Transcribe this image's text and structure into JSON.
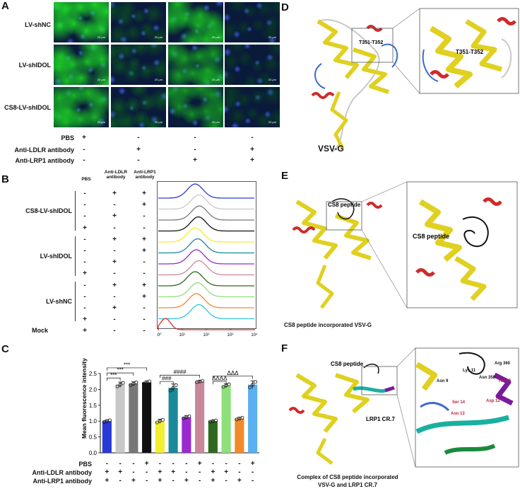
{
  "panels": {
    "A": "A",
    "B": "B",
    "C": "C",
    "D": "D",
    "E": "E",
    "F": "F"
  },
  "panelA": {
    "rows": [
      "LV-shNC",
      "LV-shIDOL",
      "CS8-LV-shIDOL"
    ],
    "treat_labels": [
      "PBS",
      "Anti-LDLR antibody",
      "Anti-LRP1 antibody"
    ],
    "treat_signs": [
      [
        "+",
        "-",
        "-",
        "-"
      ],
      [
        "-",
        "+",
        "-",
        "+"
      ],
      [
        "-",
        "-",
        "+",
        "+"
      ]
    ],
    "scale_text": "20 μm",
    "brightness": [
      [
        0.95,
        0.25,
        0.85,
        0.1
      ],
      [
        0.9,
        0.3,
        0.75,
        0.12
      ],
      [
        0.85,
        0.35,
        0.7,
        0.15
      ]
    ]
  },
  "panelB": {
    "col_headers": [
      "PBS",
      "Anti-LDLR antibody",
      "Anti-LRP1 antibody"
    ],
    "groups": [
      "CS8-LV-shIDOL",
      "LV-shIDOL",
      "LV-shNC",
      "Mock"
    ],
    "rows": [
      [
        "-",
        "+",
        "+"
      ],
      [
        "-",
        "-",
        "+"
      ],
      [
        "-",
        "+",
        "-"
      ],
      [
        "+",
        "-",
        "-"
      ],
      [
        "-",
        "+",
        "+"
      ],
      [
        "-",
        "-",
        "+"
      ],
      [
        "-",
        "+",
        "-"
      ],
      [
        "+",
        "-",
        "-"
      ],
      [
        "-",
        "+",
        "+"
      ],
      [
        "-",
        "-",
        "+"
      ],
      [
        "-",
        "+",
        "-"
      ],
      [
        "+",
        "-",
        "-"
      ],
      [
        "+",
        "-",
        "-"
      ]
    ],
    "hist_colors": [
      "#2a3ad6",
      "#c8c8c8",
      "#777777",
      "#111111",
      "#f2ee30",
      "#1a8a9a",
      "#9a2ad0",
      "#c7889a",
      "#2d6a1d",
      "#8ee07a",
      "#f08a2a",
      "#2ac8e0",
      "#e02a2a"
    ],
    "hist_peaks": [
      1.55,
      1.7,
      1.72,
      1.68,
      1.55,
      1.65,
      1.6,
      1.7,
      1.55,
      1.65,
      1.6,
      1.7,
      0.35
    ],
    "x_ticks": [
      "10⁰",
      "10¹",
      "10²",
      "10³",
      "10⁴"
    ]
  },
  "chart_data": {
    "type": "bar",
    "ylabel": "Mean fluorescence intensity",
    "ylim": [
      0.0,
      2.5
    ],
    "yticks": [
      "0.0",
      "0.5",
      "1.0",
      "1.5",
      "2.0",
      "2.5"
    ],
    "values": [
      1.0,
      2.15,
      2.18,
      2.22,
      1.0,
      2.05,
      1.12,
      2.25,
      1.0,
      2.12,
      1.08,
      2.15
    ],
    "errors": [
      0.04,
      0.08,
      0.06,
      0.05,
      0.06,
      0.12,
      0.05,
      0.03,
      0.03,
      0.06,
      0.04,
      0.12
    ],
    "colors": [
      "#2a3ad6",
      "#c8c8c8",
      "#777777",
      "#111111",
      "#f2ee30",
      "#1a8a9a",
      "#9a2ad0",
      "#c7889a",
      "#2d6a1d",
      "#8ee07a",
      "#f08a2a",
      "#5ab0f0"
    ],
    "row_labels": [
      "PBS",
      "Anti-LDLR antibody",
      "Anti-LRP1 antibody"
    ],
    "signs": [
      [
        "-",
        "-",
        "-",
        "+",
        "-",
        "-",
        "-",
        "+",
        "-",
        "-",
        "-",
        "+"
      ],
      [
        "+",
        "+",
        "-",
        "-",
        "+",
        "+",
        "-",
        "-",
        "+",
        "+",
        "-",
        "-"
      ],
      [
        "+",
        "-",
        "+",
        "-",
        "+",
        "-",
        "+",
        "-",
        "+",
        "-",
        "+",
        "-"
      ]
    ],
    "sig_labels": [
      "***",
      "***",
      "***",
      "###",
      "####",
      "ΔΔΔΔ",
      "ΔΔΔ"
    ]
  },
  "panelD": {
    "caption": "VSV-G",
    "site_label": "T351-T352",
    "zoom_label": "T351-T352"
  },
  "panelE": {
    "peptide_label": "CS8 peptide",
    "zoom_label": "CS8 peptide",
    "caption": "CS8 peptide incorporated VSV-G"
  },
  "panelF": {
    "peptide_label": "CS8 peptide",
    "receptor_label": "LRP1 CR.7",
    "caption_line1": "Complex of CS8 peptide incorporated",
    "caption_line2": "VSV-G and LRP1 CR.7",
    "residues": [
      "Arg 360",
      "Thr 37",
      "Lys 11",
      "Asn 358",
      "Asn 9",
      "Ser 14",
      "Asp 12",
      "Asn 13"
    ]
  }
}
